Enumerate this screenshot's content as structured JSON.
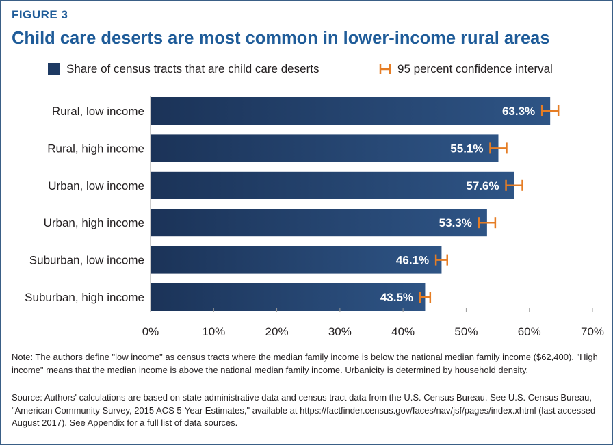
{
  "figure_label": "FIGURE 3",
  "title": "Child care deserts are most common in lower-income rural areas",
  "legend": {
    "bars_label": "Share of census tracts that are child care deserts",
    "ci_label": "95 percent confidence interval"
  },
  "colors": {
    "title": "#1f5c99",
    "bar": "#1e3a63",
    "ci": "#e57d25"
  },
  "chart_data": {
    "type": "bar",
    "orientation": "horizontal",
    "categories": [
      "Rural, low income",
      "Rural, high income",
      "Urban, low income",
      "Urban, high income",
      "Suburban, low income",
      "Suburban, high income"
    ],
    "values": [
      63.3,
      55.1,
      57.6,
      53.3,
      46.1,
      43.5
    ],
    "value_labels": [
      "63.3%",
      "55.1%",
      "57.6%",
      "53.3%",
      "46.1%",
      "43.5%"
    ],
    "ci_low": [
      62.0,
      53.8,
      56.3,
      52.0,
      45.2,
      42.7
    ],
    "ci_high": [
      64.6,
      56.4,
      58.9,
      54.6,
      47.0,
      44.3
    ],
    "xlim": [
      0,
      70
    ],
    "xticks": [
      0,
      10,
      20,
      30,
      40,
      50,
      60,
      70
    ],
    "xtick_labels": [
      "0%",
      "10%",
      "20%",
      "30%",
      "40%",
      "50%",
      "60%",
      "70%"
    ],
    "grid": false,
    "legend_position": "top"
  },
  "note": "Note: The authors define \"low income\" as census tracts where the median family income is below the national median family income ($62,400). \"High income\" means that the median income is above the national median family income. Urbanicity is determined by household density.",
  "source": "Source: Authors' calculations are based on state administrative data and census tract data from the U.S. Census Bureau. See U.S. Census Bureau, \"American Community Survey, 2015 ACS 5-Year Estimates,\" available at https://factfinder.census.gov/faces/nav/jsf/pages/index.xhtml (last accessed August 2017). See Appendix for a full list of data sources."
}
